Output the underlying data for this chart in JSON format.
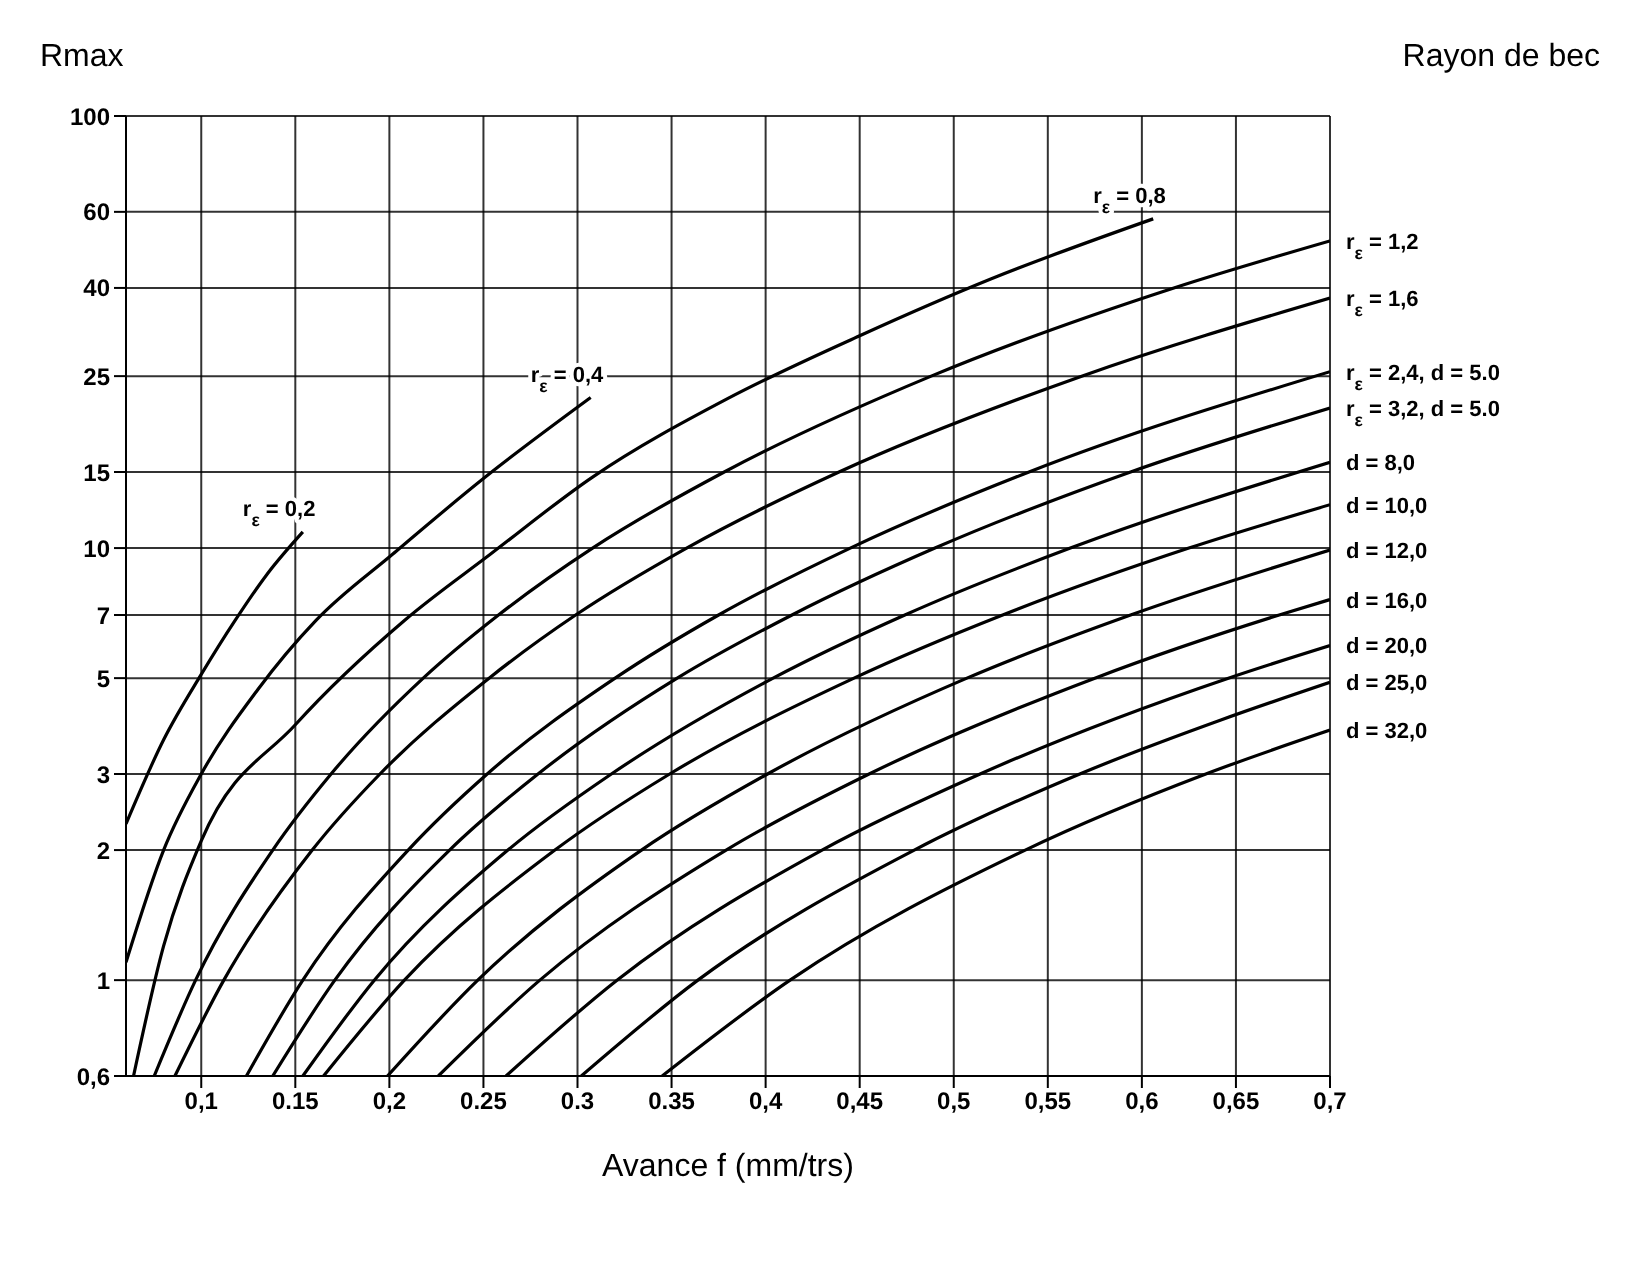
{
  "chart_data": {
    "type": "line",
    "xlabel": "Avance f (mm/trs)",
    "ylabel": "Rmax",
    "legend_title": "Rayon de bec",
    "log": "y",
    "grid": true,
    "marker": "none",
    "line_style": "solid",
    "xlim": [
      0.06,
      0.7
    ],
    "ylim": [
      0.6,
      100
    ],
    "xticks": [
      {
        "value": 0.1,
        "label": "0,1"
      },
      0.15,
      {
        "value": 0.2,
        "label": "0,2"
      },
      0.25,
      0.3,
      0.35,
      {
        "value": 0.4,
        "label": "0,4"
      },
      {
        "value": 0.45,
        "label": "0,45"
      },
      {
        "value": 0.5,
        "label": "0,5"
      },
      {
        "value": 0.55,
        "label": "0,55"
      },
      {
        "value": 0.6,
        "label": "0,6"
      },
      {
        "value": 0.65,
        "label": "0,65"
      },
      {
        "value": 0.7,
        "label": "0,7"
      }
    ],
    "yticks": [
      {
        "value": 0.6,
        "label": "0,6"
      },
      1,
      2,
      3,
      5,
      7,
      10,
      15,
      25,
      40,
      60,
      100
    ],
    "series": [
      {
        "name": "r$_{ε}$ = 0,2",
        "color": "#000000",
        "x": [
          0.06,
          0.08,
          0.1,
          0.118,
          0.135,
          0.154
        ],
        "values": [
          2.3,
          3.6,
          5.1,
          6.8,
          8.7,
          10.9
        ]
      },
      {
        "name": "r$_{ε}$ = 0,4",
        "color": "#000000",
        "x": [
          0.06,
          0.08,
          0.1,
          0.13,
          0.161,
          0.202,
          0.251,
          0.307
        ],
        "values": [
          1.1,
          2.0,
          3.0,
          4.7,
          6.8,
          9.7,
          14.6,
          22.3
        ]
      },
      {
        "name": "r$_{ε}$ = 0,8",
        "color": "#000000",
        "x": [
          0.064,
          0.08,
          0.1,
          0.15,
          0.208,
          0.254,
          0.308,
          0.38,
          0.45,
          0.52,
          0.606
        ],
        "values": [
          0.6,
          1.2,
          2.1,
          3.9,
          6.8,
          9.7,
          14.6,
          22.2,
          31,
          42,
          57.8
        ]
      },
      {
        "name": "r$_{ε}$ = 1,2",
        "color": "#000000",
        "x": [
          0.075,
          0.097,
          0.138,
          0.169,
          0.218,
          0.258,
          0.308,
          0.378,
          0.488,
          0.617,
          0.7
        ],
        "values": [
          0.6,
          1,
          2,
          3,
          5,
          7,
          10,
          15,
          25,
          40,
          51.4
        ]
      },
      {
        "name": "r$_{ε}$ = 1,6",
        "color": "#000000",
        "x": [
          0.086,
          0.112,
          0.159,
          0.195,
          0.253,
          0.299,
          0.358,
          0.439,
          0.568,
          0.7
        ],
        "values": [
          0.6,
          1,
          2,
          3,
          5,
          7,
          10,
          15,
          25,
          37.9
        ]
      },
      {
        "name": "r$_{ε}$ = 2,4, d = 5.0",
        "color": "#000000",
        "x": [
          0.124,
          0.154,
          0.21,
          0.252,
          0.32,
          0.375,
          0.445,
          0.54,
          0.7
        ],
        "values": [
          0.6,
          1,
          2,
          3,
          5,
          7,
          10,
          15,
          25.6
        ]
      },
      {
        "name": "r$_{ε}$ = 3,2, d = 5.0",
        "color": "#000000",
        "x": [
          0.138,
          0.171,
          0.232,
          0.279,
          0.353,
          0.414,
          0.49,
          0.594,
          0.7
        ],
        "values": [
          0.6,
          1,
          2,
          3,
          5,
          7,
          10,
          15,
          21.1
        ]
      },
      {
        "name": "d = 8,0",
        "color": "#000000",
        "x": [
          0.154,
          0.192,
          0.263,
          0.318,
          0.404,
          0.474,
          0.562,
          0.7
        ],
        "values": [
          0.6,
          1,
          2,
          3,
          5,
          7,
          10,
          15.8
        ]
      },
      {
        "name": "d = 10,0",
        "color": "#000000",
        "x": [
          0.165,
          0.208,
          0.288,
          0.349,
          0.447,
          0.526,
          0.625,
          0.7
        ],
        "values": [
          0.6,
          1,
          2,
          3,
          5,
          7,
          10,
          12.6
        ]
      },
      {
        "name": "d = 12,0",
        "color": "#000000",
        "x": [
          0.199,
          0.247,
          0.334,
          0.401,
          0.507,
          0.594,
          0.7
        ],
        "values": [
          0.6,
          1,
          2,
          3,
          5,
          7,
          9.9
        ]
      },
      {
        "name": "d = 16,0",
        "color": "#000000",
        "x": [
          0.226,
          0.28,
          0.379,
          0.455,
          0.575,
          0.673,
          0.7
        ],
        "values": [
          0.6,
          1,
          2,
          3,
          5,
          7,
          7.6
        ]
      },
      {
        "name": "d = 20,0",
        "color": "#000000",
        "x": [
          0.262,
          0.321,
          0.43,
          0.514,
          0.646,
          0.7
        ],
        "values": [
          0.6,
          1,
          2,
          3,
          5,
          5.95
        ]
      },
      {
        "name": "d = 25,0",
        "color": "#000000",
        "x": [
          0.302,
          0.364,
          0.479,
          0.567,
          0.642,
          0.7
        ],
        "values": [
          0.6,
          1,
          2,
          3,
          4,
          4.89
        ]
      },
      {
        "name": "d = 32,0",
        "color": "#000000",
        "x": [
          0.345,
          0.413,
          0.538,
          0.634,
          0.7
        ],
        "values": [
          0.6,
          1,
          2,
          3,
          3.79
        ]
      }
    ]
  }
}
